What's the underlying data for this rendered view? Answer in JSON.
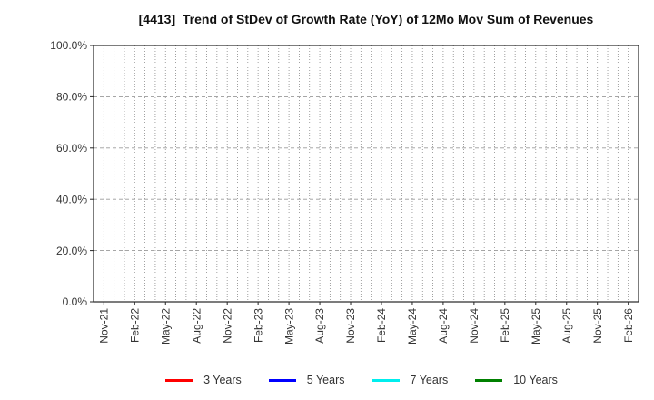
{
  "chart_data": {
    "type": "line",
    "title": "[4413]  Trend of StDev of Growth Rate (YoY) of 12Mo Mov Sum of Revenues",
    "x_axis": {
      "tick_labels": [
        "Nov-21",
        "Feb-22",
        "May-22",
        "Aug-22",
        "Nov-22",
        "Feb-23",
        "May-23",
        "Aug-23",
        "Nov-23",
        "Feb-24",
        "May-24",
        "Aug-24",
        "Nov-24",
        "Feb-25",
        "May-25",
        "Aug-25",
        "Nov-25",
        "Feb-26"
      ],
      "months_between_labels": 3,
      "total_months": 52,
      "label_rotation_deg": 90
    },
    "y_axis": {
      "tick_labels": [
        "0.0%",
        "20.0%",
        "40.0%",
        "60.0%",
        "80.0%",
        "100.0%"
      ],
      "tick_values": [
        0,
        20,
        40,
        60,
        80,
        100
      ],
      "range": [
        0,
        100
      ]
    },
    "grid": {
      "vertical": "dotted, one per month",
      "horizontal": "dashed at y tick values"
    },
    "legend_position": "bottom-center",
    "series": [
      {
        "name": "3 Years",
        "color": "#ff0000",
        "values": []
      },
      {
        "name": "5 Years",
        "color": "#0000ff",
        "values": []
      },
      {
        "name": "7 Years",
        "color": "#00eeee",
        "values": []
      },
      {
        "name": "10 Years",
        "color": "#008000",
        "values": []
      }
    ],
    "colors": {
      "frame": "#262626",
      "grid_vertical": "#8a8a8a",
      "grid_horizontal": "#9a9a9a",
      "tick_label": "#333333",
      "title": "#111111"
    }
  }
}
